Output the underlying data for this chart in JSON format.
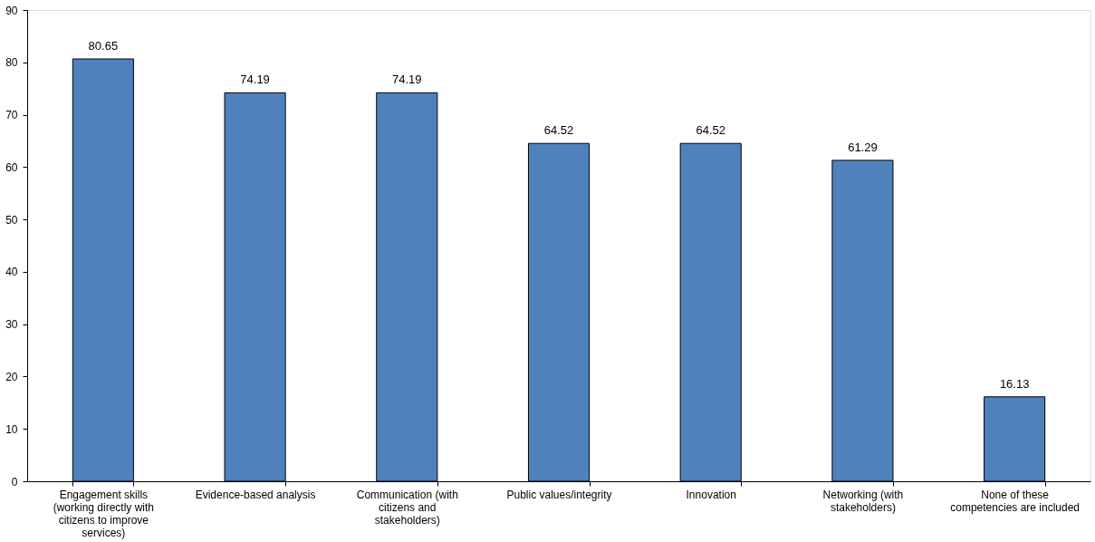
{
  "chart_data": {
    "type": "bar",
    "categories": [
      "Engagement skills (working directly with citizens to improve services)",
      "Evidence-based analysis",
      "Communication (with citizens and stakeholders)",
      "Public values/integrity",
      "Innovation",
      "Networking (with stakeholders)",
      "None of these competencies are included"
    ],
    "values": [
      80.65,
      74.19,
      74.19,
      64.52,
      64.52,
      61.29,
      16.13
    ],
    "color": "#4f81bd",
    "ylim": [
      0,
      90
    ],
    "yticks": [
      0,
      10,
      20,
      30,
      40,
      50,
      60,
      70,
      80,
      90
    ],
    "grid": false,
    "data_labels": true
  }
}
